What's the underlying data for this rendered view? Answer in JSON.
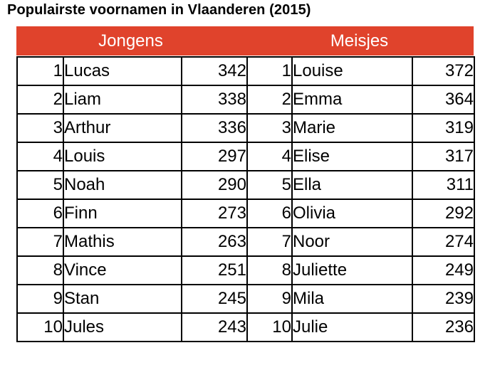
{
  "title": "Populairste voornamen in Vlaanderen (2015)",
  "header": {
    "boys": "Jongens",
    "girls": "Meisjes"
  },
  "colors": {
    "header_bg": "#e0432c",
    "header_text": "#ffffff"
  },
  "rows": [
    {
      "boy_rank": "1",
      "boy_name": "Lucas",
      "boy_count": "342",
      "girl_rank": "1",
      "girl_name": "Louise",
      "girl_count": "372"
    },
    {
      "boy_rank": "2",
      "boy_name": "Liam",
      "boy_count": "338",
      "girl_rank": "2",
      "girl_name": "Emma",
      "girl_count": "364"
    },
    {
      "boy_rank": "3",
      "boy_name": "Arthur",
      "boy_count": "336",
      "girl_rank": "3",
      "girl_name": "Marie",
      "girl_count": "319"
    },
    {
      "boy_rank": "4",
      "boy_name": "Louis",
      "boy_count": "297",
      "girl_rank": "4",
      "girl_name": "Elise",
      "girl_count": "317"
    },
    {
      "boy_rank": "5",
      "boy_name": "Noah",
      "boy_count": "290",
      "girl_rank": "5",
      "girl_name": "Ella",
      "girl_count": "311"
    },
    {
      "boy_rank": "6",
      "boy_name": "Finn",
      "boy_count": "273",
      "girl_rank": "6",
      "girl_name": "Olivia",
      "girl_count": "292"
    },
    {
      "boy_rank": "7",
      "boy_name": "Mathis",
      "boy_count": "263",
      "girl_rank": "7",
      "girl_name": "Noor",
      "girl_count": "274"
    },
    {
      "boy_rank": "8",
      "boy_name": "Vince",
      "boy_count": "251",
      "girl_rank": "8",
      "girl_name": "Juliette",
      "girl_count": "249"
    },
    {
      "boy_rank": "9",
      "boy_name": "Stan",
      "boy_count": "245",
      "girl_rank": "9",
      "girl_name": "Mila",
      "girl_count": "239"
    },
    {
      "boy_rank": "10",
      "boy_name": "Jules",
      "boy_count": "243",
      "girl_rank": "10",
      "girl_name": "Julie",
      "girl_count": "236"
    }
  ]
}
